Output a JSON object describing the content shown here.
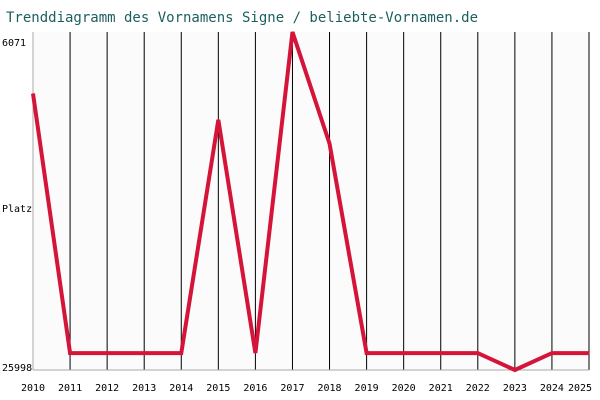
{
  "chart_data": {
    "type": "line",
    "title": "Trenddiagramm des Vornamens Signe / beliebte-Vornamen.de",
    "ylabel": "Platz",
    "y_top_label": "6071",
    "y_bottom_label": "25998",
    "y_inverted": true,
    "ylim": [
      25998,
      6071
    ],
    "categories": [
      "2010",
      "2011",
      "2012",
      "2013",
      "2014",
      "2015",
      "2016",
      "2017",
      "2018",
      "2019",
      "2020",
      "2021",
      "2022",
      "2023",
      "2024",
      "2025"
    ],
    "series": [
      {
        "color": "#d5143a",
        "values": [
          9700,
          25000,
          25000,
          25000,
          25000,
          11250,
          25000,
          6071,
          12650,
          25000,
          25000,
          25000,
          25000,
          25998,
          25000,
          25000
        ]
      }
    ],
    "grid": true,
    "colors": {
      "title": "#1d5f5f",
      "line": "#d5143a",
      "grid": "#000000",
      "axis": "#aaaaaa",
      "plot_bg": "#fbfbfb"
    }
  }
}
